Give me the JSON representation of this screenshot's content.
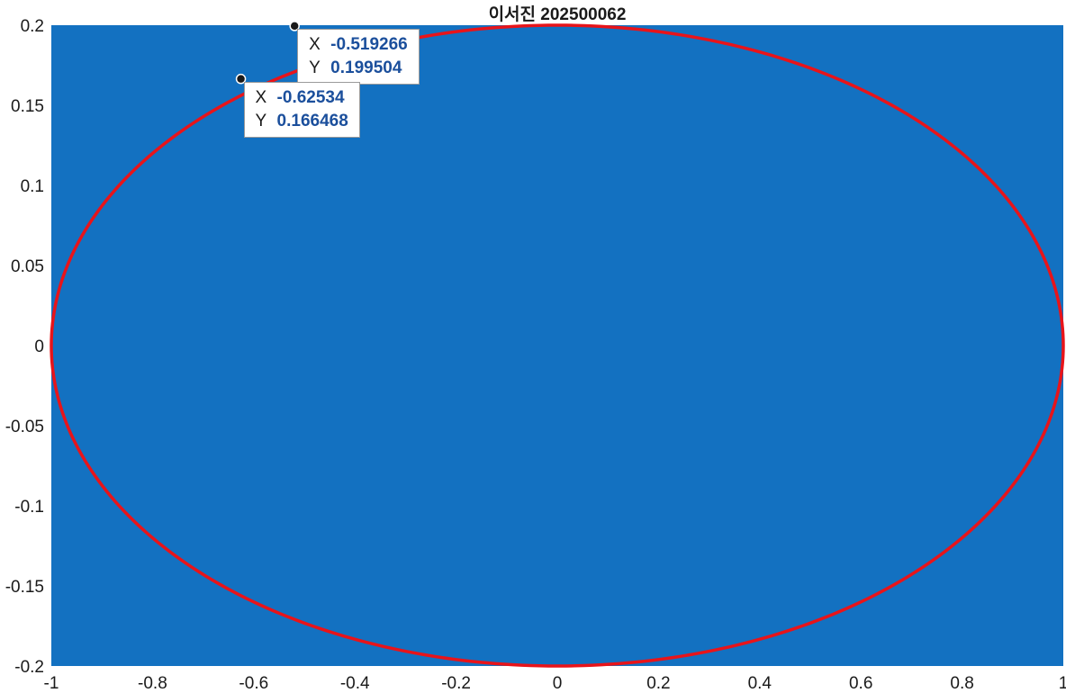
{
  "chart_data": {
    "type": "line",
    "title": "이서진 202500062",
    "xlabel": "",
    "ylabel": "",
    "xlim": [
      -1,
      1
    ],
    "ylim": [
      -0.2,
      0.2
    ],
    "grid": false,
    "background_color": "#1371C1",
    "series": [
      {
        "color": "#E8141A",
        "shape": "ellipse",
        "center": [
          0,
          0
        ],
        "semi_axes": [
          1,
          0.2
        ]
      }
    ],
    "x_ticks": [
      "-1",
      "-0.8",
      "-0.6",
      "-0.4",
      "-0.2",
      "0",
      "0.2",
      "0.4",
      "0.6",
      "0.8",
      "1"
    ],
    "x_tick_values": [
      -1,
      -0.8,
      -0.6,
      -0.4,
      -0.2,
      0,
      0.2,
      0.4,
      0.6,
      0.8,
      1
    ],
    "y_ticks": [
      "0.2",
      "0.15",
      "0.1",
      "0.05",
      "0",
      "-0.05",
      "-0.1",
      "-0.15",
      "-0.2"
    ],
    "y_tick_values": [
      0.2,
      0.15,
      0.1,
      0.05,
      0,
      -0.05,
      -0.1,
      -0.15,
      -0.2
    ],
    "datatips": [
      {
        "x_label": "X",
        "y_label": "Y",
        "x": -0.519266,
        "y": 0.199504,
        "x_text": "-0.519266",
        "y_text": "0.199504"
      },
      {
        "x_label": "X",
        "y_label": "Y",
        "x": -0.62534,
        "y": 0.166468,
        "x_text": "-0.62534",
        "y_text": "0.166468"
      }
    ]
  }
}
